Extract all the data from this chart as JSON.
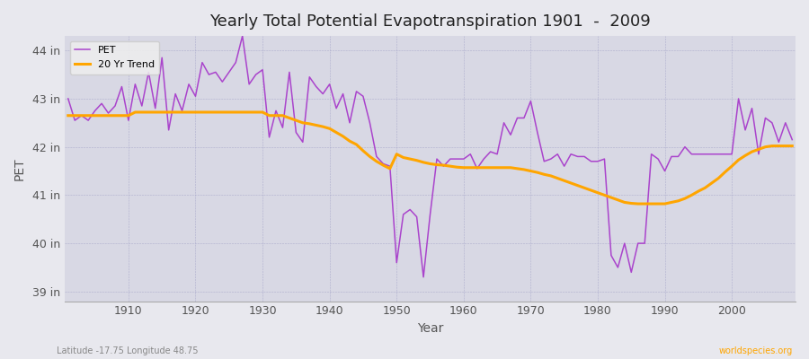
{
  "title": "Yearly Total Potential Evapotranspiration 1901  -  2009",
  "xlabel": "Year",
  "ylabel": "PET",
  "bottom_left_label": "Latitude -17.75 Longitude 48.75",
  "bottom_right_label": "worldspecies.org",
  "pet_color": "#AA44CC",
  "trend_color": "#FFA500",
  "background_color": "#E8E8EE",
  "plot_bg_color": "#D8D8E4",
  "ylim": [
    38.8,
    44.3
  ],
  "yticks": [
    39,
    40,
    41,
    42,
    43,
    44
  ],
  "ytick_labels": [
    "39 in",
    "40 in",
    "41 in",
    "42 in",
    "43 in",
    "44 in"
  ],
  "xlim": [
    1900.5,
    2009.5
  ],
  "years": [
    1901,
    1902,
    1903,
    1904,
    1905,
    1906,
    1907,
    1908,
    1909,
    1910,
    1911,
    1912,
    1913,
    1914,
    1915,
    1916,
    1917,
    1918,
    1919,
    1920,
    1921,
    1922,
    1923,
    1924,
    1925,
    1926,
    1927,
    1928,
    1929,
    1930,
    1931,
    1932,
    1933,
    1934,
    1935,
    1936,
    1937,
    1938,
    1939,
    1940,
    1941,
    1942,
    1943,
    1944,
    1945,
    1946,
    1947,
    1948,
    1949,
    1950,
    1951,
    1952,
    1953,
    1954,
    1955,
    1956,
    1957,
    1958,
    1959,
    1960,
    1961,
    1962,
    1963,
    1964,
    1965,
    1966,
    1967,
    1968,
    1969,
    1970,
    1971,
    1972,
    1973,
    1974,
    1975,
    1976,
    1977,
    1978,
    1979,
    1980,
    1981,
    1982,
    1983,
    1984,
    1985,
    1986,
    1987,
    1988,
    1989,
    1990,
    1991,
    1992,
    1993,
    1994,
    1995,
    1996,
    1997,
    1998,
    1999,
    2000,
    2001,
    2002,
    2003,
    2004,
    2005,
    2006,
    2007,
    2008,
    2009
  ],
  "pet_values": [
    43.0,
    42.55,
    42.65,
    42.55,
    42.75,
    42.9,
    42.7,
    42.85,
    43.25,
    42.55,
    43.3,
    42.85,
    43.55,
    42.8,
    43.85,
    42.35,
    43.1,
    42.75,
    43.3,
    43.05,
    43.75,
    43.5,
    43.55,
    43.35,
    43.55,
    43.75,
    44.3,
    43.3,
    43.5,
    43.6,
    42.2,
    42.75,
    42.4,
    43.55,
    42.3,
    42.1,
    43.45,
    43.25,
    43.1,
    43.3,
    42.8,
    43.1,
    42.5,
    43.15,
    43.05,
    42.5,
    41.8,
    41.65,
    41.6,
    39.6,
    40.6,
    40.7,
    40.55,
    39.3,
    40.6,
    41.75,
    41.6,
    41.75,
    41.75,
    41.75,
    41.85,
    41.55,
    41.75,
    41.9,
    41.85,
    42.5,
    42.25,
    42.6,
    42.6,
    42.95,
    42.3,
    41.7,
    41.75,
    41.85,
    41.6,
    41.85,
    41.8,
    41.8,
    41.7,
    41.7,
    41.75,
    39.75,
    39.5,
    40.0,
    39.4,
    40.0,
    40.0,
    41.85,
    41.75,
    41.5,
    41.8,
    41.8,
    42.0,
    41.85,
    41.85,
    41.85,
    41.85,
    41.85,
    41.85,
    41.85,
    43.0,
    42.35,
    42.8,
    41.85,
    42.6,
    42.5,
    42.1,
    42.5,
    42.15
  ],
  "trend_values": [
    42.65,
    42.65,
    42.65,
    42.65,
    42.65,
    42.65,
    42.65,
    42.65,
    42.65,
    42.65,
    42.72,
    42.72,
    42.72,
    42.72,
    42.72,
    42.72,
    42.72,
    42.72,
    42.72,
    42.72,
    42.72,
    42.72,
    42.72,
    42.72,
    42.72,
    42.72,
    42.72,
    42.72,
    42.72,
    42.72,
    42.65,
    42.65,
    42.65,
    42.6,
    42.55,
    42.5,
    42.48,
    42.45,
    42.42,
    42.38,
    42.3,
    42.22,
    42.12,
    42.05,
    41.92,
    41.8,
    41.7,
    41.62,
    41.55,
    41.85,
    41.78,
    41.75,
    41.72,
    41.68,
    41.65,
    41.63,
    41.62,
    41.6,
    41.58,
    41.57,
    41.57,
    41.57,
    41.57,
    41.57,
    41.57,
    41.57,
    41.57,
    41.55,
    41.53,
    41.5,
    41.47,
    41.43,
    41.4,
    41.35,
    41.3,
    41.25,
    41.2,
    41.15,
    41.1,
    41.05,
    41.0,
    40.95,
    40.9,
    40.85,
    40.83,
    40.82,
    40.82,
    40.82,
    40.82,
    40.82,
    40.85,
    40.88,
    40.93,
    41.0,
    41.08,
    41.15,
    41.25,
    41.35,
    41.48,
    41.6,
    41.73,
    41.82,
    41.9,
    41.95,
    42.0,
    42.02,
    42.02,
    42.02,
    42.02
  ]
}
